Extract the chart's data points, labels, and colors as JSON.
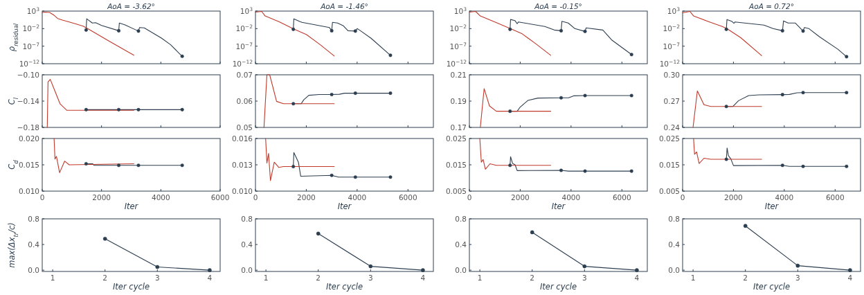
{
  "chart_data": [
    {
      "type": "line",
      "title": "AoA = -3.62°",
      "ylabel": "ρ$_{residual}$",
      "log": true,
      "tick_labels": "y",
      "xlim": [
        0,
        6000
      ],
      "xticks": [
        0,
        2000,
        4000,
        6000
      ],
      "ylim": [
        1e-12,
        1000
      ],
      "yticks": [
        {
          "value": 1000,
          "label": "10$^{3}$"
        },
        {
          "value": 0.01,
          "label": "10$^{−2}$"
        },
        {
          "value": 1e-07,
          "label": "10$^{−7}$"
        },
        {
          "value": 1e-12,
          "label": "10$^{−12}$"
        }
      ],
      "series": [
        {
          "color": "#2c3e50",
          "x": [
            1480,
            1500,
            1690,
            1800,
            2000,
            2580,
            2600,
            2780,
            3245,
            3280,
            3440,
            4020,
            4330,
            4720
          ],
          "values": [
            0.004,
            6.3,
            0.4,
            0.5,
            0.08,
            0.0025,
            0.4,
            0.13,
            0.002,
            0.02,
            0.016,
            2e-05,
            2.5e-07,
            1.3e-10
          ]
        },
        {
          "color": "#c0392b",
          "x": [
            0,
            100,
            250,
            400,
            520,
            700,
            910,
            1150,
            1380,
            1530,
            2300,
            3090
          ],
          "values": [
            400,
            500,
            400,
            63,
            7.9,
            2.5,
            0.8,
            0.2,
            0.05,
            0.01,
            1.6e-06,
            2.5e-10
          ]
        },
        {
          "type": "scatter",
          "marker": "circle",
          "color": "#2c3e50",
          "x": [
            1480,
            2580,
            3245,
            4720
          ],
          "values": [
            0.004,
            0.0025,
            0.002,
            1.3e-10
          ]
        }
      ]
    },
    {
      "type": "line",
      "title": "AoA = -1.46°",
      "tick_labels": "y",
      "log": true,
      "xlim": [
        0,
        7000
      ],
      "xticks": [
        0,
        2000,
        4000,
        6000
      ],
      "ylim": [
        1e-12,
        1000
      ],
      "yticks": [
        {
          "value": 1000,
          "label": "10$^{3}$"
        },
        {
          "value": 0.01,
          "label": "10$^{−2}$"
        },
        {
          "value": 1e-07,
          "label": "10$^{−7}$"
        },
        {
          "value": 1e-12,
          "label": "10$^{−12}$"
        }
      ],
      "series": [
        {
          "color": "#2c3e50",
          "x": [
            1490,
            1510,
            1740,
            1830,
            2910,
            3000,
            3030,
            3230,
            3460,
            3640,
            3930,
            4000,
            4090,
            4540,
            5310
          ],
          "values": [
            0.0063,
            6.3,
            1.1,
            0.63,
            0.02,
            0.0025,
            0.63,
            0.4,
            0.063,
            0.0025,
            0.002,
            0.01,
            0.004,
            2e-05,
            2.5e-10
          ]
        },
        {
          "color": "#c0392b",
          "x": [
            0,
            245,
            380,
            920,
            1470,
            2010,
            2550,
            3100
          ],
          "values": [
            500,
            800,
            40,
            1,
            0.01,
            0.0002,
            2.5e-07,
            1.6e-10
          ]
        },
        {
          "type": "scatter",
          "marker": "circle",
          "color": "#2c3e50",
          "x": [
            1490,
            3000,
            3930,
            5310
          ],
          "values": [
            0.0063,
            0.0025,
            0.002,
            2.5e-10
          ]
        }
      ]
    },
    {
      "type": "line",
      "title": "AoA = -0.15°",
      "tick_labels": "y",
      "log": true,
      "xlim": [
        0,
        7000
      ],
      "xticks": [
        0,
        2000,
        4000,
        6000
      ],
      "ylim": [
        1e-12,
        1000
      ],
      "yticks": [
        {
          "value": 1000,
          "label": "10$^{3}$"
        },
        {
          "value": 0.01,
          "label": "10$^{−2}$"
        },
        {
          "value": 1e-07,
          "label": "10$^{−7}$"
        },
        {
          "value": 1e-12,
          "label": "10$^{−12}$"
        }
      ],
      "series": [
        {
          "color": "#2c3e50",
          "x": [
            1600,
            1620,
            1790,
            1880,
            1930,
            2970,
            3340,
            3610,
            3640,
            3890,
            4150,
            4550,
            4590,
            5250,
            5610,
            6380
          ],
          "values": [
            0.0063,
            4,
            2,
            0.25,
            0.8,
            0.04,
            0.004,
            0.0025,
            1.26,
            0.4,
            0.01,
            0.0016,
            0.016,
            0.004,
            5e-06,
            4e-10
          ]
        },
        {
          "color": "#c0392b",
          "x": [
            0,
            245,
            430,
            970,
            1610,
            2060,
            2610,
            3200
          ],
          "values": [
            500,
            800,
            40,
            1,
            0.01,
            0.0004,
            5e-07,
            2.5e-10
          ]
        },
        {
          "type": "scatter",
          "marker": "circle",
          "color": "#2c3e50",
          "x": [
            1600,
            3610,
            4550,
            6380
          ],
          "values": [
            0.0063,
            0.0025,
            0.0016,
            4e-10
          ]
        }
      ]
    },
    {
      "type": "line",
      "title": "AoA = 0.72°",
      "tick_labels": "y",
      "log": true,
      "xlim": [
        0,
        7000
      ],
      "xticks": [
        0,
        2000,
        4000,
        6000
      ],
      "ylim": [
        1e-12,
        1000
      ],
      "yticks": [
        {
          "value": 1000,
          "label": "10$^{3}$"
        },
        {
          "value": 0.01,
          "label": "10$^{−2}$"
        },
        {
          "value": 1e-07,
          "label": "10$^{−7}$"
        },
        {
          "value": 1e-12,
          "label": "10$^{−12}$"
        }
      ],
      "series": [
        {
          "color": "#2c3e50",
          "x": [
            1720,
            1745,
            1930,
            2020,
            2060,
            3200,
            3560,
            3930,
            3970,
            4150,
            4430,
            4740,
            4790,
            4970,
            5380,
            6110,
            6450
          ],
          "values": [
            0.0063,
            4,
            1.26,
            0.32,
            0.8,
            0.1,
            0.01,
            0.0025,
            1.6,
            0.4,
            0.4,
            0.002,
            0.02,
            0.01,
            5e-05,
            1.3e-08,
            1e-10
          ]
        },
        {
          "color": "#c0392b",
          "x": [
            0,
            290,
            430,
            1020,
            1560,
            1740,
            2290,
            3110
          ],
          "values": [
            320,
            800,
            40,
            1,
            0.04,
            0.01,
            2.5e-05,
            2e-10
          ]
        },
        {
          "type": "scatter",
          "marker": "circle",
          "color": "#2c3e50",
          "x": [
            1720,
            3930,
            4740,
            6450
          ],
          "values": [
            0.0063,
            0.0025,
            0.002,
            1e-10
          ]
        }
      ]
    },
    {
      "type": "line",
      "ylabel": "C$_{l}$",
      "tick_labels": "y",
      "xlim": [
        0,
        6000
      ],
      "xticks": [
        0,
        2000,
        4000,
        6000
      ],
      "ylim": [
        -0.18,
        -0.1
      ],
      "yticks": [
        {
          "value": -0.1,
          "label": "−0.10"
        },
        {
          "value": -0.14,
          "label": "−0.14"
        },
        {
          "value": -0.18,
          "label": "−0.18"
        }
      ],
      "series": [
        {
          "color": "#2c3e50",
          "x": [
            1480,
            4720
          ],
          "values": [
            -0.153,
            -0.153
          ]
        },
        {
          "color": "#c0392b",
          "x": [
            170,
            195,
            270,
            440,
            600,
            830,
            3090
          ],
          "values": [
            -0.18,
            -0.111,
            -0.107,
            -0.126,
            -0.144,
            -0.154,
            -0.154
          ]
        },
        {
          "type": "scatter",
          "marker": "circle",
          "color": "#2c3e50",
          "x": [
            1480,
            2580,
            3245,
            4720
          ],
          "values": [
            -0.153,
            -0.153,
            -0.153,
            -0.153
          ]
        }
      ]
    },
    {
      "type": "line",
      "tick_labels": "y",
      "xlim": [
        0,
        7000
      ],
      "xticks": [
        0,
        2000,
        4000,
        6000
      ],
      "ylim": [
        0.05,
        0.07
      ],
      "yticks": [
        {
          "value": 0.07,
          "label": "0.07"
        },
        {
          "value": 0.06,
          "label": "0.06"
        },
        {
          "value": 0.05,
          "label": "0.05"
        }
      ],
      "series": [
        {
          "color": "#2c3e50",
          "x": [
            1490,
            1800,
            1900,
            2100,
            2500,
            3000,
            3300,
            3500,
            5310
          ],
          "values": [
            0.059,
            0.059,
            0.0605,
            0.0622,
            0.0625,
            0.0625,
            0.0626,
            0.063,
            0.063
          ]
        },
        {
          "color": "#c0392b",
          "x": [
            335,
            450,
            560,
            830,
            1100,
            3100
          ],
          "values": [
            0.05,
            0.07,
            0.07,
            0.0599,
            0.059,
            0.059
          ]
        },
        {
          "type": "scatter",
          "marker": "circle",
          "color": "#2c3e50",
          "x": [
            1490,
            3000,
            3930,
            5310
          ],
          "values": [
            0.059,
            0.0625,
            0.063,
            0.063
          ]
        }
      ]
    },
    {
      "type": "line",
      "tick_labels": "y",
      "xlim": [
        0,
        7000
      ],
      "xticks": [
        0,
        2000,
        4000,
        6000
      ],
      "ylim": [
        0.17,
        0.21
      ],
      "yticks": [
        {
          "value": 0.21,
          "label": "0.21"
        },
        {
          "value": 0.19,
          "label": "0.19"
        },
        {
          "value": 0.17,
          "label": "0.17"
        }
      ],
      "series": [
        {
          "color": "#2c3e50",
          "x": [
            1600,
            1880,
            2000,
            2300,
            2700,
            3610,
            3900,
            4100,
            4550,
            6380
          ],
          "values": [
            0.1823,
            0.1823,
            0.1855,
            0.1905,
            0.1923,
            0.1925,
            0.1925,
            0.194,
            0.1942,
            0.1942
          ]
        },
        {
          "color": "#c0392b",
          "x": [
            430,
            580,
            790,
            1060,
            3200
          ],
          "values": [
            0.17,
            0.1995,
            0.1863,
            0.1823,
            0.1823
          ]
        },
        {
          "type": "scatter",
          "marker": "circle",
          "color": "#2c3e50",
          "x": [
            1600,
            3610,
            4550,
            6380
          ],
          "values": [
            0.1823,
            0.1925,
            0.1942,
            0.1942
          ]
        }
      ]
    },
    {
      "type": "line",
      "tick_labels": "y",
      "xlim": [
        0,
        7000
      ],
      "xticks": [
        0,
        2000,
        4000,
        6000
      ],
      "ylim": [
        0.24,
        0.3
      ],
      "yticks": [
        {
          "value": 0.3,
          "label": "0.30"
        },
        {
          "value": 0.27,
          "label": "0.27"
        },
        {
          "value": 0.24,
          "label": "0.24"
        }
      ],
      "series": [
        {
          "color": "#2c3e50",
          "x": [
            1720,
            1980,
            2200,
            2600,
            3000,
            3930,
            4200,
            4500,
            4740,
            6450
          ],
          "values": [
            0.2639,
            0.2639,
            0.2705,
            0.2763,
            0.2771,
            0.2774,
            0.2776,
            0.2795,
            0.2797,
            0.2797
          ]
        },
        {
          "color": "#c0392b",
          "x": [
            410,
            580,
            840,
            1110,
            3110
          ],
          "values": [
            0.24,
            0.2816,
            0.2658,
            0.2639,
            0.2639
          ]
        },
        {
          "type": "scatter",
          "marker": "circle",
          "color": "#2c3e50",
          "x": [
            1720,
            3930,
            4740,
            6450
          ],
          "values": [
            0.2639,
            0.2774,
            0.2797,
            0.2797
          ]
        }
      ]
    },
    {
      "type": "line",
      "ylabel": "C$_{d}$",
      "xlabel": "Iter",
      "xlim": [
        0,
        6000
      ],
      "xticks": [
        0,
        2000,
        4000,
        6000
      ],
      "ylim": [
        0.01,
        0.02
      ],
      "yticks": [
        {
          "value": 0.02,
          "label": "0.020"
        },
        {
          "value": 0.015,
          "label": "0.015"
        },
        {
          "value": 0.01,
          "label": "0.010"
        }
      ],
      "series": [
        {
          "color": "#2c3e50",
          "x": [
            1480,
            1700,
            1750,
            2580,
            3245,
            4720
          ],
          "values": [
            0.0152,
            0.0152,
            0.0149,
            0.0149,
            0.0149,
            0.0149
          ]
        },
        {
          "color": "#c0392b",
          "x": [
            400,
            430,
            480,
            585,
            755,
            910,
            3090
          ],
          "values": [
            0.02,
            0.0161,
            0.0166,
            0.0135,
            0.0157,
            0.015,
            0.0152
          ]
        },
        {
          "type": "scatter",
          "marker": "circle",
          "color": "#2c3e50",
          "x": [
            1480,
            2580,
            3245,
            4720
          ],
          "values": [
            0.0152,
            0.0149,
            0.0149,
            0.0149
          ]
        }
      ]
    },
    {
      "type": "line",
      "xlabel": "Iter",
      "xlim": [
        0,
        7000
      ],
      "xticks": [
        0,
        2000,
        4000,
        6000
      ],
      "ylim": [
        0.01,
        0.016
      ],
      "yticks": [
        {
          "value": 0.016,
          "label": "0.016"
        },
        {
          "value": 0.013,
          "label": "0.013"
        },
        {
          "value": 0.01,
          "label": "0.010"
        }
      ],
      "series": [
        {
          "color": "#2c3e50",
          "x": [
            1490,
            1510,
            1690,
            1780,
            3000,
            3270,
            3930,
            5310
          ],
          "values": [
            0.0128,
            0.0144,
            0.0133,
            0.0117,
            0.0118,
            0.0116,
            0.0116,
            0.0116
          ]
        },
        {
          "color": "#c0392b",
          "x": [
            400,
            450,
            515,
            590,
            740,
            920,
            1100,
            3100
          ],
          "values": [
            0.016,
            0.0132,
            0.0143,
            0.0112,
            0.0133,
            0.0127,
            0.0128,
            0.0128
          ]
        },
        {
          "type": "scatter",
          "marker": "circle",
          "color": "#2c3e50",
          "x": [
            1490,
            3000,
            3930,
            5310
          ],
          "values": [
            0.0128,
            0.0118,
            0.0116,
            0.0116
          ]
        }
      ]
    },
    {
      "type": "line",
      "xlabel": "Iter",
      "xlim": [
        0,
        7000
      ],
      "xticks": [
        0,
        2000,
        4000,
        6000
      ],
      "ylim": [
        0.005,
        0.025
      ],
      "yticks": [
        {
          "value": 0.025,
          "label": "0.025"
        },
        {
          "value": 0.015,
          "label": "0.015"
        },
        {
          "value": 0.005,
          "label": "0.005"
        }
      ],
      "series": [
        {
          "color": "#2c3e50",
          "x": [
            1600,
            1620,
            1700,
            1800,
            1880,
            3610,
            3900,
            4550,
            6380
          ],
          "values": [
            0.0148,
            0.0181,
            0.0155,
            0.015,
            0.0128,
            0.0129,
            0.0126,
            0.0126,
            0.0126
          ]
        },
        {
          "color": "#c0392b",
          "x": [
            410,
            470,
            540,
            630,
            810,
            1060,
            3200
          ],
          "values": [
            0.025,
            0.016,
            0.017,
            0.0133,
            0.0154,
            0.0148,
            0.0148
          ]
        },
        {
          "type": "scatter",
          "marker": "circle",
          "color": "#2c3e50",
          "x": [
            1600,
            3610,
            4550,
            6380
          ],
          "values": [
            0.0148,
            0.0129,
            0.0126,
            0.0126
          ]
        }
      ]
    },
    {
      "type": "line",
      "xlabel": "Iter",
      "xlim": [
        0,
        7000
      ],
      "xticks": [
        0,
        2000,
        4000,
        6000
      ],
      "ylim": [
        0.005,
        0.025
      ],
      "yticks": [
        {
          "value": 0.025,
          "label": "0.025"
        },
        {
          "value": 0.015,
          "label": "0.015"
        },
        {
          "value": 0.005,
          "label": "0.005"
        }
      ],
      "series": [
        {
          "color": "#2c3e50",
          "x": [
            1720,
            1750,
            1800,
            1900,
            2000,
            3930,
            4200,
            4740,
            6450
          ],
          "values": [
            0.0171,
            0.0214,
            0.0185,
            0.0172,
            0.0147,
            0.0148,
            0.0144,
            0.0144,
            0.0144
          ]
        },
        {
          "color": "#c0392b",
          "x": [
            430,
            470,
            550,
            650,
            840,
            1110,
            3110
          ],
          "values": [
            0.025,
            0.019,
            0.0199,
            0.0155,
            0.0175,
            0.0171,
            0.0171
          ]
        },
        {
          "type": "scatter",
          "marker": "circle",
          "color": "#2c3e50",
          "x": [
            1720,
            3930,
            4740,
            6450
          ],
          "values": [
            0.0171,
            0.0148,
            0.0144,
            0.0144
          ]
        }
      ]
    },
    {
      "type": "line",
      "ylabel": "max(Δx$_{tr}$/c)",
      "xlabel": "Iter cycle",
      "xlim": [
        0.8,
        4.2
      ],
      "xticks": [
        1,
        2,
        3,
        4
      ],
      "ylim": [
        -0.02,
        0.8
      ],
      "yticks": [
        {
          "value": 0,
          "label": "0.0"
        },
        {
          "value": 0.4,
          "label": "0.4"
        },
        {
          "value": 0.8,
          "label": "0.8"
        }
      ],
      "series": [
        {
          "color": "#2c3e50",
          "x": [
            2,
            3,
            4
          ],
          "values": [
            0.49,
            0.05,
            0
          ]
        }
      ],
      "marker": "circle"
    },
    {
      "type": "line",
      "xlabel": "Iter cycle",
      "xlim": [
        0.8,
        4.2
      ],
      "xticks": [
        1,
        2,
        3,
        4
      ],
      "ylim": [
        -0.02,
        0.8
      ],
      "yticks": [
        {
          "value": 0,
          "label": "0.0"
        },
        {
          "value": 0.4,
          "label": "0.4"
        },
        {
          "value": 0.8,
          "label": "0.8"
        }
      ],
      "series": [
        {
          "color": "#2c3e50",
          "x": [
            2,
            3,
            4
          ],
          "values": [
            0.57,
            0.06,
            0
          ]
        }
      ],
      "marker": "circle"
    },
    {
      "type": "line",
      "xlabel": "Iter cycle",
      "xlim": [
        0.8,
        4.2
      ],
      "xticks": [
        1,
        2,
        3,
        4
      ],
      "ylim": [
        -0.02,
        0.8
      ],
      "yticks": [
        {
          "value": 0,
          "label": "0.0"
        },
        {
          "value": 0.4,
          "label": "0.4"
        },
        {
          "value": 0.8,
          "label": "0.8"
        }
      ],
      "series": [
        {
          "color": "#2c3e50",
          "x": [
            2,
            3,
            4
          ],
          "values": [
            0.59,
            0.06,
            0
          ]
        }
      ],
      "marker": "circle"
    },
    {
      "type": "line",
      "xlabel": "Iter cycle",
      "xlim": [
        0.8,
        4.2
      ],
      "xticks": [
        1,
        2,
        3,
        4
      ],
      "ylim": [
        -0.02,
        0.8
      ],
      "yticks": [
        {
          "value": 0,
          "label": "0.0"
        },
        {
          "value": 0.4,
          "label": "0.4"
        },
        {
          "value": 0.8,
          "label": "0.8"
        }
      ],
      "series": [
        {
          "color": "#2c3e50",
          "x": [
            2,
            3,
            4
          ],
          "values": [
            0.69,
            0.07,
            0
          ]
        }
      ],
      "marker": "circle"
    }
  ]
}
